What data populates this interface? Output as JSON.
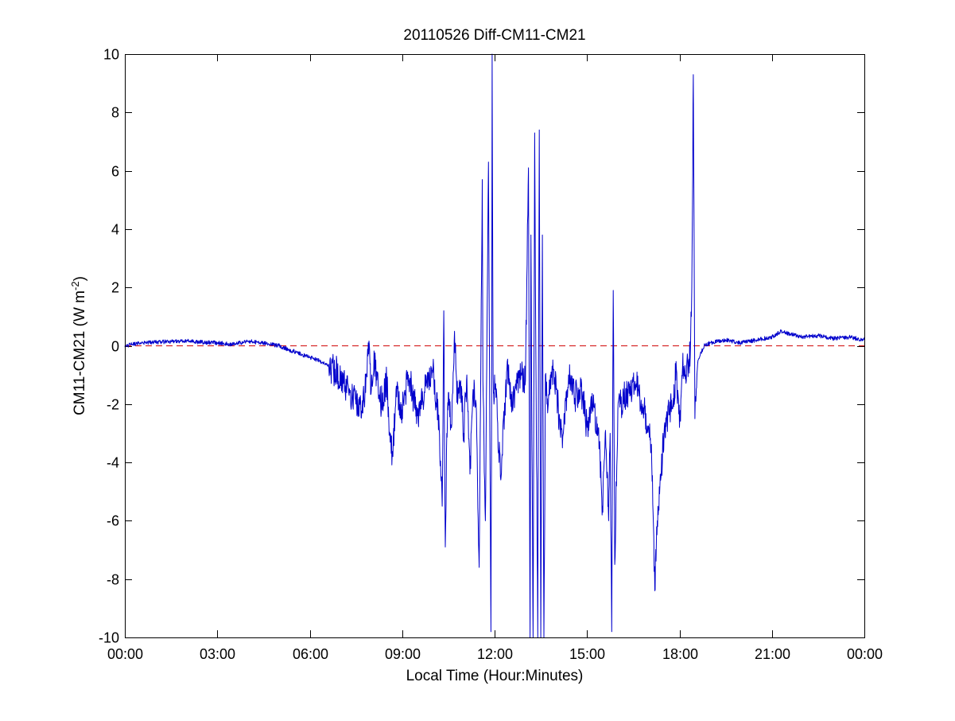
{
  "chart_data": {
    "type": "line",
    "title": "20110526 Diff-CM11-CM21",
    "xlabel": "Local Time (Hour:Minutes)",
    "ylabel": {
      "prefix": "CM11-CM21 (W m",
      "superscript": "-2",
      "suffix": ")"
    },
    "xlim": [
      0,
      24
    ],
    "ylim": [
      -10,
      10
    ],
    "x_ticks": [
      {
        "value": 0,
        "label": "00:00"
      },
      {
        "value": 3,
        "label": "03:00"
      },
      {
        "value": 6,
        "label": "06:00"
      },
      {
        "value": 9,
        "label": "09:00"
      },
      {
        "value": 12,
        "label": "12:00"
      },
      {
        "value": 15,
        "label": "15:00"
      },
      {
        "value": 18,
        "label": "18:00"
      },
      {
        "value": 21,
        "label": "21:00"
      },
      {
        "value": 24,
        "label": "00:00"
      }
    ],
    "y_ticks": [
      {
        "value": -10,
        "label": "-10"
      },
      {
        "value": -8,
        "label": "-8"
      },
      {
        "value": -6,
        "label": "-6"
      },
      {
        "value": -4,
        "label": "-4"
      },
      {
        "value": -2,
        "label": "-2"
      },
      {
        "value": 0,
        "label": "0"
      },
      {
        "value": 2,
        "label": "2"
      },
      {
        "value": 4,
        "label": "4"
      },
      {
        "value": 6,
        "label": "6"
      },
      {
        "value": 8,
        "label": "8"
      },
      {
        "value": 10,
        "label": "10"
      }
    ],
    "grid": false,
    "reference_line": {
      "y": 0,
      "color": "#d62728",
      "style": "dashed"
    },
    "series": [
      {
        "color": "#0000cc",
        "x": [
          0.0,
          0.5,
          1.0,
          1.5,
          2.0,
          2.5,
          3.0,
          3.5,
          4.0,
          4.5,
          5.0,
          5.5,
          6.0,
          6.3,
          6.6,
          6.9,
          7.1,
          7.3,
          7.5,
          7.7,
          7.85,
          7.9,
          8.0,
          8.1,
          8.3,
          8.5,
          8.6,
          8.7,
          8.8,
          9.0,
          9.2,
          9.5,
          9.8,
          10.0,
          10.2,
          10.3,
          10.35,
          10.4,
          10.45,
          10.5,
          10.6,
          10.7,
          10.8,
          10.9,
          11.0,
          11.1,
          11.2,
          11.3,
          11.4,
          11.5,
          11.6,
          11.62,
          11.7,
          11.8,
          11.88,
          11.9,
          11.92,
          11.95,
          11.98,
          12.0,
          12.2,
          12.4,
          12.6,
          12.8,
          13.0,
          13.1,
          13.15,
          13.18,
          13.2,
          13.25,
          13.3,
          13.35,
          13.4,
          13.45,
          13.5,
          13.55,
          13.6,
          13.65,
          13.7,
          13.8,
          13.9,
          14.0,
          14.2,
          14.4,
          14.6,
          14.8,
          15.0,
          15.2,
          15.4,
          15.5,
          15.6,
          15.7,
          15.75,
          15.8,
          15.85,
          15.9,
          16.0,
          16.2,
          16.4,
          16.6,
          16.8,
          17.0,
          17.1,
          17.2,
          17.25,
          17.3,
          17.4,
          17.5,
          17.6,
          17.8,
          17.9,
          18.0,
          18.1,
          18.2,
          18.3,
          18.35,
          18.4,
          18.45,
          18.5,
          18.6,
          18.8,
          19.0,
          19.5,
          20.0,
          20.5,
          21.0,
          21.3,
          21.6,
          22.0,
          22.5,
          23.0,
          23.5,
          24.0
        ],
        "y": [
          0.0,
          0.1,
          0.12,
          0.15,
          0.18,
          0.12,
          0.1,
          0.05,
          0.15,
          0.1,
          0.0,
          -0.2,
          -0.4,
          -0.5,
          -0.7,
          -0.9,
          -1.3,
          -1.6,
          -2.0,
          -2.3,
          -1.0,
          0.1,
          -1.5,
          -0.6,
          -2.0,
          -1.2,
          -3.0,
          -3.8,
          -1.5,
          -2.2,
          -1.0,
          -2.4,
          -1.3,
          -0.8,
          -2.8,
          -5.5,
          1.2,
          -6.9,
          -3.0,
          -1.6,
          -2.8,
          0.5,
          -2.0,
          -1.2,
          -3.0,
          -1.0,
          -4.4,
          -1.5,
          -2.0,
          -7.6,
          5.7,
          -1.2,
          -6.0,
          6.3,
          -9.8,
          -4.0,
          10.0,
          -1.0,
          -2.0,
          -1.0,
          -4.6,
          -0.8,
          -2.0,
          -1.0,
          -1.2,
          6.1,
          -10.0,
          3.8,
          -1.2,
          -10.0,
          7.3,
          -2.0,
          -10.0,
          7.4,
          -10.0,
          3.8,
          -10.0,
          -1.0,
          -2.0,
          -1.2,
          -0.8,
          -1.5,
          -3.5,
          -1.0,
          -1.8,
          -1.4,
          -2.8,
          -2.0,
          -3.5,
          -5.5,
          -2.9,
          -6.0,
          -3.0,
          -9.8,
          1.9,
          -7.5,
          -2.2,
          -1.8,
          -1.4,
          -1.3,
          -2.0,
          -2.8,
          -4.0,
          -8.4,
          -6.8,
          -5.5,
          -4.5,
          -3.0,
          -2.5,
          -1.8,
          -0.8,
          -2.8,
          -0.7,
          -1.0,
          -0.5,
          -0.3,
          2.0,
          9.3,
          -2.5,
          -0.5,
          0.0,
          0.1,
          0.2,
          0.1,
          0.2,
          0.3,
          0.5,
          0.4,
          0.3,
          0.35,
          0.25,
          0.3,
          0.2
        ]
      }
    ]
  }
}
